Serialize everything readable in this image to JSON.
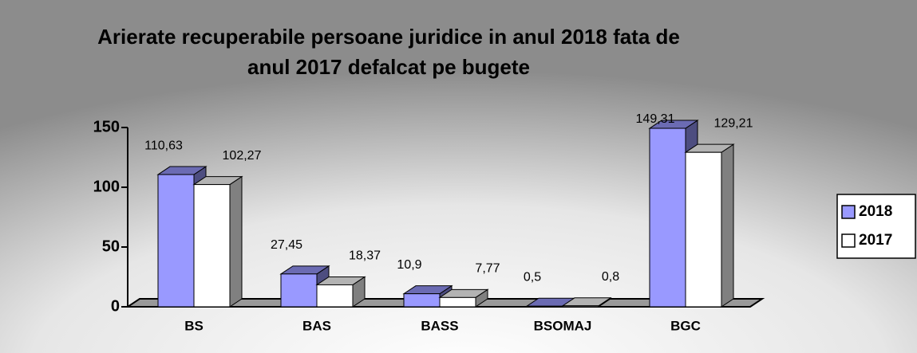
{
  "chart_data": {
    "type": "bar3d",
    "title": [
      "Arierate recuperabile persoane juridice in anul 2018 fata de",
      "anul 2017 defalcat pe bugete"
    ],
    "categories": [
      "BS",
      "BAS",
      "BASS",
      "BSOMAJ",
      "BGC"
    ],
    "series": [
      {
        "name": "2018",
        "color": "#9999ff",
        "values": [
          110.63,
          27.45,
          10.9,
          0.5,
          149.31
        ],
        "value_labels": [
          "110,63",
          "27,45",
          "10,9",
          "0,5",
          "149,31"
        ]
      },
      {
        "name": "2017",
        "color": "#ffffff",
        "values": [
          102.27,
          18.37,
          7.77,
          0.8,
          129.21
        ],
        "value_labels": [
          "102,27",
          "18,37",
          "7,77",
          "0,8",
          "129,21"
        ]
      }
    ],
    "ylim": [
      0,
      150
    ],
    "yticks": [
      0,
      50,
      100,
      150
    ],
    "legend": "right"
  }
}
